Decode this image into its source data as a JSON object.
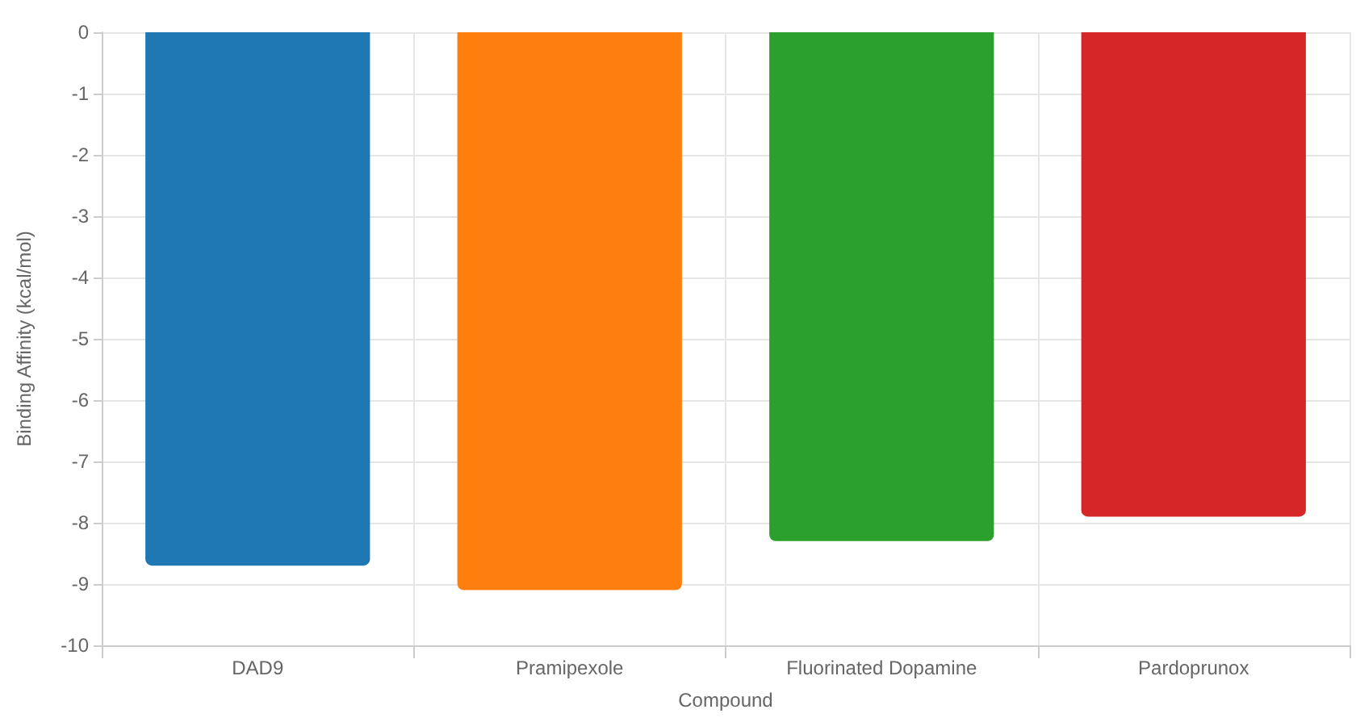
{
  "chart_data": {
    "type": "bar",
    "xlabel": "Compound",
    "ylabel": "Binding Affinity (kcal/mol)",
    "categories": [
      "DAD9",
      "Pramipexole",
      "Fluorinated Dopamine",
      "Pardoprunox"
    ],
    "values": [
      -8.7,
      -9.1,
      -8.3,
      -7.9
    ],
    "colors": [
      "#1f77b4",
      "#ff7f0e",
      "#2ca02c",
      "#d62728"
    ],
    "ylim": [
      -10,
      0
    ],
    "yticks": [
      0,
      -1,
      -2,
      -3,
      -4,
      -5,
      -6,
      -7,
      -8,
      -9,
      -10
    ],
    "grid": true
  }
}
